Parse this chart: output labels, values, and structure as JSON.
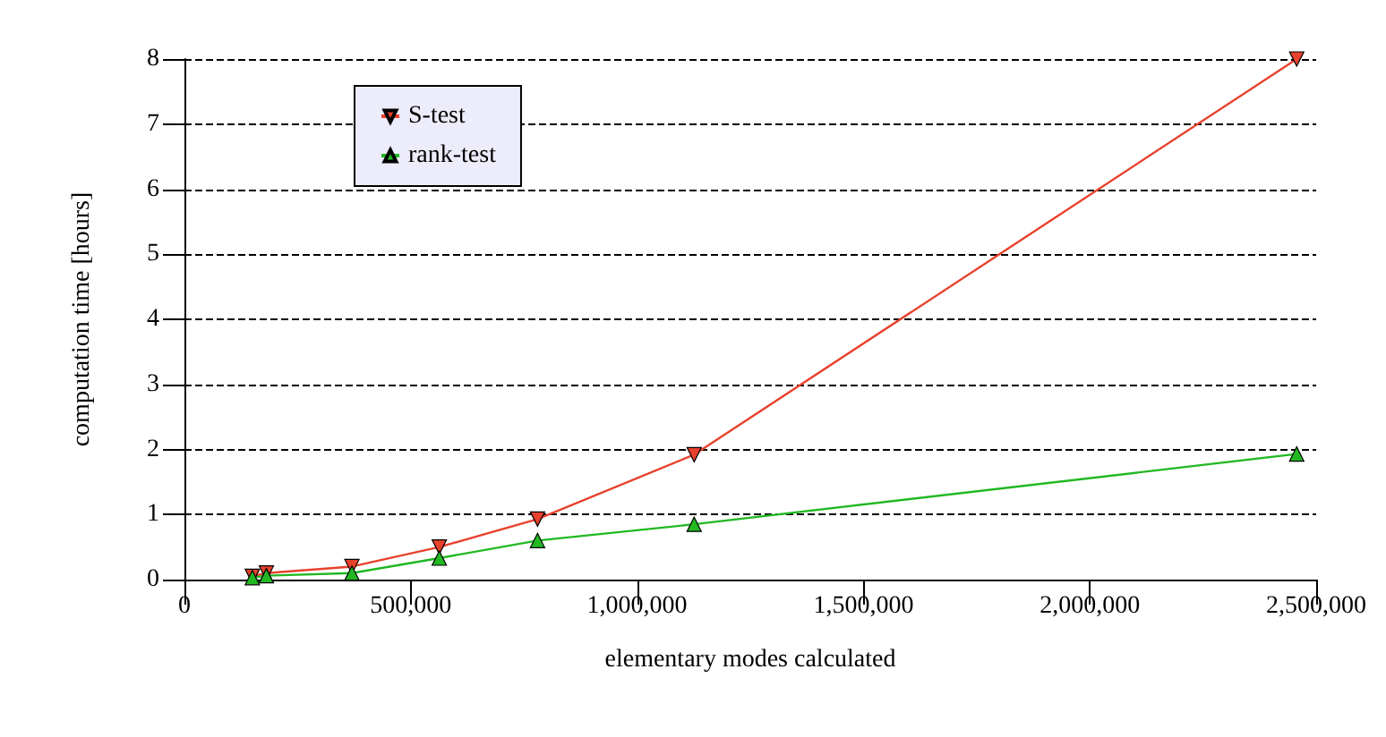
{
  "chart_data": {
    "type": "line",
    "xlabel": "elementary modes calculated",
    "ylabel": "computation time [hours]",
    "xlim": [
      0,
      2500000
    ],
    "xticks": [
      {
        "value": 0,
        "label": "0"
      },
      {
        "value": 500000,
        "label": "500,000"
      },
      {
        "value": 1000000,
        "label": "1,000,000"
      },
      {
        "value": 1500000,
        "label": "1,500,000"
      },
      {
        "value": 2000000,
        "label": "2,000,000"
      },
      {
        "value": 2500000,
        "label": "2,500,000"
      }
    ],
    "ylim": [
      0,
      8
    ],
    "yticks": [
      0,
      1,
      2,
      3,
      4,
      5,
      6,
      7,
      8
    ],
    "grid": "y",
    "legend": "top left",
    "x": [
      150000,
      181000,
      370000,
      563000,
      780000,
      1126000,
      2457000
    ],
    "series": [
      {
        "name": "S-test",
        "color": "#e8412c",
        "marker": "triangle-down",
        "values": [
          0.05,
          0.1,
          0.2,
          0.5,
          0.93,
          1.92,
          8.0
        ]
      },
      {
        "name": "rank-test",
        "color": "#22b822",
        "marker": "triangle",
        "values": [
          0.03,
          0.06,
          0.1,
          0.33,
          0.6,
          0.85,
          1.93
        ]
      }
    ]
  }
}
